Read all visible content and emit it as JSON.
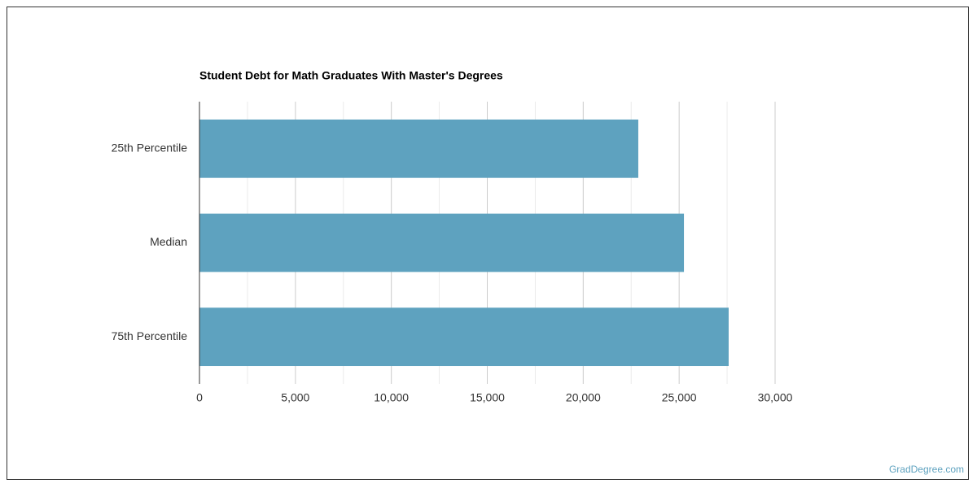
{
  "chart_data": {
    "type": "bar",
    "orientation": "horizontal",
    "title": "Student Debt for Math Graduates With Master's Degrees",
    "categories": [
      "25th Percentile",
      "Median",
      "75th Percentile"
    ],
    "values": [
      22870,
      25250,
      27580
    ],
    "color": "#5ea2bf",
    "xlim": [
      0,
      30000
    ],
    "xticks": [
      0,
      {
        "value": 5000,
        "label": "5,000"
      },
      {
        "value": 10000,
        "label": "10,000"
      },
      {
        "value": 15000,
        "label": "15,000"
      },
      {
        "value": 20000,
        "label": "20,000"
      },
      {
        "value": 25000,
        "label": "25,000"
      },
      {
        "value": 30000,
        "label": "30,000"
      }
    ],
    "minor_xticks": [
      2500,
      7500,
      12500,
      17500,
      22500,
      27500
    ],
    "grid": true,
    "source": "GradDegree.com"
  }
}
